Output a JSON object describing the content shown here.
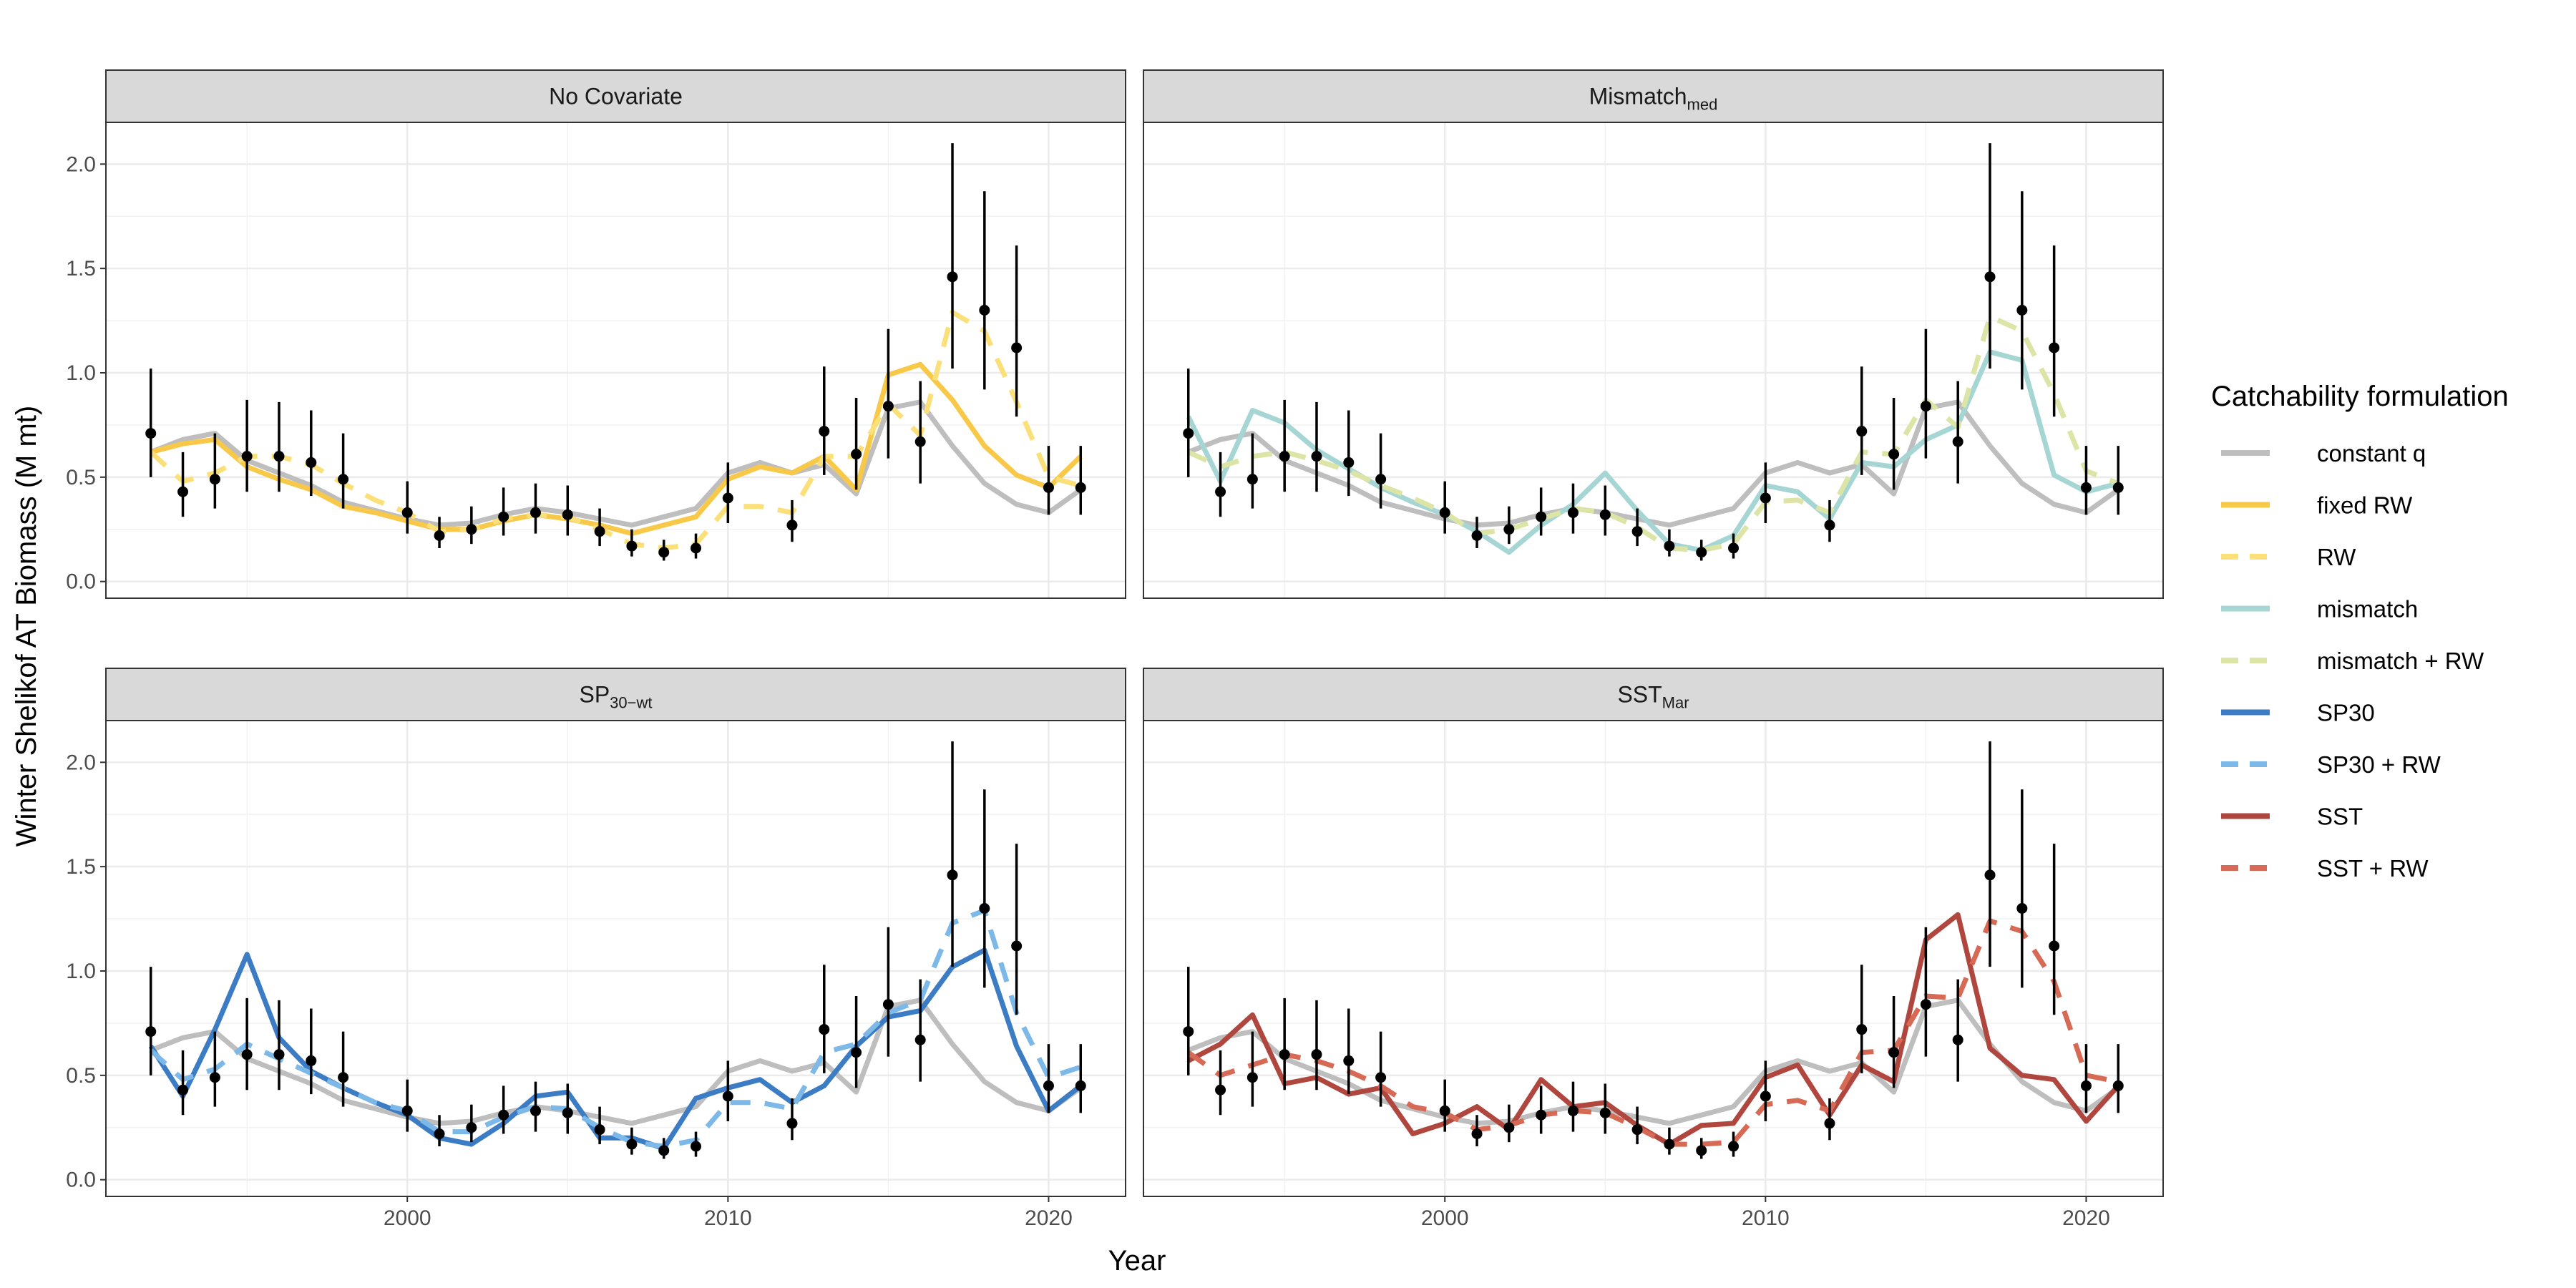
{
  "chart_data": {
    "type": "line",
    "xlabel": "Year",
    "ylabel": "Winter Shelikof AT Biomass (M mt)",
    "xlim": [
      1990.6,
      2022.4
    ],
    "ylim": [
      -0.08,
      2.2
    ],
    "x_ticks": [
      2000,
      2010,
      2020
    ],
    "y_ticks": [
      0.0,
      0.5,
      1.0,
      1.5,
      2.0
    ],
    "y_tick_labels": [
      "0.0",
      "0.5",
      "1.0",
      "1.5",
      "2.0"
    ],
    "grid": true,
    "legend": {
      "title": "Catchability formulation",
      "position": "right",
      "entries": [
        {
          "key": "constant_q",
          "label": "constant q",
          "color": "#BEBEBE",
          "dash": false
        },
        {
          "key": "fixed_RW",
          "label": "fixed RW",
          "color": "#F8C948",
          "dash": false
        },
        {
          "key": "RW",
          "label": "RW",
          "color": "#FBE07A",
          "dash": true
        },
        {
          "key": "mismatch",
          "label": "mismatch",
          "color": "#A6D6D4",
          "dash": false
        },
        {
          "key": "mismatch_RW",
          "label": "mismatch + RW",
          "color": "#DCE4A6",
          "dash": true
        },
        {
          "key": "SP30",
          "label": "SP30",
          "color": "#3B7CC4",
          "dash": false
        },
        {
          "key": "SP30_RW",
          "label": "SP30 + RW",
          "color": "#7DB9E8",
          "dash": true
        },
        {
          "key": "SST",
          "label": "SST",
          "color": "#B0473F",
          "dash": false
        },
        {
          "key": "SST_RW",
          "label": "SST + RW",
          "color": "#D66A55",
          "dash": true
        }
      ]
    },
    "observations": {
      "years": [
        1992,
        1993,
        1994,
        1995,
        1996,
        1997,
        1998,
        2000,
        2001,
        2002,
        2003,
        2004,
        2005,
        2006,
        2007,
        2008,
        2009,
        2010,
        2012,
        2013,
        2014,
        2015,
        2016,
        2017,
        2018,
        2019,
        2020,
        2021
      ],
      "values": [
        0.71,
        0.43,
        0.49,
        0.6,
        0.6,
        0.57,
        0.49,
        0.33,
        0.22,
        0.25,
        0.31,
        0.33,
        0.32,
        0.24,
        0.17,
        0.14,
        0.16,
        0.4,
        0.27,
        0.72,
        0.61,
        0.84,
        0.67,
        1.46,
        1.3,
        1.12,
        0.45,
        0.45
      ],
      "lower": [
        0.5,
        0.31,
        0.35,
        0.43,
        0.43,
        0.41,
        0.35,
        0.23,
        0.16,
        0.18,
        0.22,
        0.23,
        0.22,
        0.17,
        0.12,
        0.1,
        0.11,
        0.28,
        0.19,
        0.51,
        0.44,
        0.59,
        0.47,
        1.02,
        0.92,
        0.79,
        0.32,
        0.32
      ],
      "upper": [
        1.02,
        0.62,
        0.71,
        0.87,
        0.86,
        0.82,
        0.71,
        0.48,
        0.31,
        0.36,
        0.45,
        0.47,
        0.46,
        0.35,
        0.25,
        0.2,
        0.23,
        0.57,
        0.39,
        1.03,
        0.88,
        1.21,
        0.96,
        2.1,
        1.87,
        1.61,
        0.65,
        0.65
      ]
    },
    "panels": [
      {
        "title": "No  Covariate",
        "title_sub": "",
        "series": [
          {
            "key": "constant_q",
            "x": [
              1992,
              1993,
              1994,
              1995,
              1996,
              1997,
              1998,
              1999,
              2000,
              2001,
              2002,
              2003,
              2004,
              2005,
              2006,
              2007,
              2008,
              2009,
              2010,
              2011,
              2012,
              2013,
              2014,
              2015,
              2016,
              2017,
              2018,
              2019,
              2020,
              2021
            ],
            "values": [
              0.62,
              0.68,
              0.71,
              0.58,
              0.52,
              0.46,
              0.38,
              0.34,
              0.3,
              0.27,
              0.28,
              0.32,
              0.35,
              0.33,
              0.3,
              0.27,
              0.31,
              0.35,
              0.52,
              0.57,
              0.52,
              0.56,
              0.42,
              0.83,
              0.86,
              0.65,
              0.47,
              0.37,
              0.33,
              0.44
            ]
          },
          {
            "key": "fixed_RW",
            "x": [
              1992,
              1993,
              1994,
              1995,
              1996,
              1997,
              1998,
              1999,
              2000,
              2001,
              2002,
              2003,
              2004,
              2005,
              2006,
              2007,
              2008,
              2009,
              2010,
              2011,
              2012,
              2013,
              2014,
              2015,
              2016,
              2017,
              2018,
              2019,
              2020,
              2021
            ],
            "values": [
              0.62,
              0.66,
              0.68,
              0.55,
              0.49,
              0.44,
              0.36,
              0.33,
              0.29,
              0.25,
              0.25,
              0.29,
              0.32,
              0.3,
              0.27,
              0.23,
              0.27,
              0.31,
              0.49,
              0.55,
              0.52,
              0.6,
              0.44,
              0.99,
              1.04,
              0.87,
              0.65,
              0.51,
              0.45,
              0.6
            ]
          },
          {
            "key": "RW",
            "x": [
              1992,
              1993,
              1994,
              1995,
              1996,
              1997,
              1998,
              1999,
              2000,
              2001,
              2002,
              2003,
              2004,
              2005,
              2006,
              2007,
              2008,
              2009,
              2010,
              2011,
              2012,
              2013,
              2014,
              2015,
              2016,
              2017,
              2018,
              2019,
              2020,
              2021
            ],
            "values": [
              0.62,
              0.48,
              0.52,
              0.6,
              0.6,
              0.56,
              0.47,
              0.39,
              0.33,
              0.24,
              0.25,
              0.3,
              0.32,
              0.31,
              0.25,
              0.18,
              0.16,
              0.18,
              0.36,
              0.36,
              0.33,
              0.6,
              0.6,
              0.85,
              0.7,
              1.29,
              1.2,
              0.86,
              0.5,
              0.46
            ]
          }
        ]
      },
      {
        "title": "Mismatch",
        "title_sub": "med",
        "series": [
          {
            "key": "constant_q",
            "x": [
              1992,
              1993,
              1994,
              1995,
              1996,
              1997,
              1998,
              1999,
              2000,
              2001,
              2002,
              2003,
              2004,
              2005,
              2006,
              2007,
              2008,
              2009,
              2010,
              2011,
              2012,
              2013,
              2014,
              2015,
              2016,
              2017,
              2018,
              2019,
              2020,
              2021
            ],
            "values": [
              0.62,
              0.68,
              0.71,
              0.58,
              0.52,
              0.46,
              0.38,
              0.34,
              0.3,
              0.27,
              0.28,
              0.32,
              0.35,
              0.33,
              0.3,
              0.27,
              0.31,
              0.35,
              0.52,
              0.57,
              0.52,
              0.56,
              0.42,
              0.83,
              0.86,
              0.65,
              0.47,
              0.37,
              0.33,
              0.44
            ]
          },
          {
            "key": "mismatch",
            "x": [
              1992,
              1993,
              1994,
              1995,
              1996,
              1997,
              1998,
              1999,
              2000,
              2001,
              2002,
              2003,
              2004,
              2005,
              2006,
              2007,
              2008,
              2009,
              2010,
              2011,
              2012,
              2013,
              2014,
              2015,
              2016,
              2017,
              2018,
              2019,
              2020,
              2021
            ],
            "values": [
              0.79,
              0.48,
              0.82,
              0.76,
              0.63,
              0.54,
              0.45,
              0.38,
              0.32,
              0.24,
              0.14,
              0.27,
              0.37,
              0.52,
              0.34,
              0.18,
              0.15,
              0.22,
              0.46,
              0.43,
              0.3,
              0.57,
              0.55,
              0.68,
              0.75,
              1.1,
              1.06,
              0.51,
              0.43,
              0.47
            ]
          },
          {
            "key": "mismatch_RW",
            "x": [
              1992,
              1993,
              1994,
              1995,
              1996,
              1997,
              1998,
              1999,
              2000,
              2001,
              2002,
              2003,
              2004,
              2005,
              2006,
              2007,
              2008,
              2009,
              2010,
              2011,
              2012,
              2013,
              2014,
              2015,
              2016,
              2017,
              2018,
              2019,
              2020,
              2021
            ],
            "values": [
              0.62,
              0.55,
              0.6,
              0.62,
              0.58,
              0.53,
              0.46,
              0.4,
              0.33,
              0.23,
              0.25,
              0.3,
              0.35,
              0.33,
              0.26,
              0.16,
              0.15,
              0.18,
              0.38,
              0.39,
              0.33,
              0.62,
              0.61,
              0.87,
              0.74,
              1.27,
              1.2,
              0.9,
              0.53,
              0.47
            ]
          }
        ]
      },
      {
        "title": "SP",
        "title_sub": "30−wt",
        "series": [
          {
            "key": "constant_q",
            "x": [
              1992,
              1993,
              1994,
              1995,
              1996,
              1997,
              1998,
              1999,
              2000,
              2001,
              2002,
              2003,
              2004,
              2005,
              2006,
              2007,
              2008,
              2009,
              2010,
              2011,
              2012,
              2013,
              2014,
              2015,
              2016,
              2017,
              2018,
              2019,
              2020,
              2021
            ],
            "values": [
              0.62,
              0.68,
              0.71,
              0.58,
              0.52,
              0.46,
              0.38,
              0.34,
              0.3,
              0.27,
              0.28,
              0.32,
              0.35,
              0.33,
              0.3,
              0.27,
              0.31,
              0.35,
              0.52,
              0.57,
              0.52,
              0.56,
              0.42,
              0.83,
              0.86,
              0.65,
              0.47,
              0.37,
              0.33,
              0.44
            ]
          },
          {
            "key": "SP30",
            "x": [
              1992,
              1993,
              1994,
              1995,
              1996,
              1997,
              1998,
              1999,
              2000,
              2001,
              2002,
              2003,
              2004,
              2005,
              2006,
              2007,
              2008,
              2009,
              2010,
              2011,
              2012,
              2013,
              2014,
              2015,
              2016,
              2017,
              2018,
              2019,
              2020,
              2021
            ],
            "values": [
              0.64,
              0.4,
              0.72,
              1.08,
              0.68,
              0.52,
              0.44,
              0.37,
              0.31,
              0.2,
              0.17,
              0.27,
              0.4,
              0.42,
              0.2,
              0.2,
              0.15,
              0.39,
              0.44,
              0.48,
              0.37,
              0.45,
              0.64,
              0.78,
              0.81,
              1.02,
              1.1,
              0.64,
              0.33,
              0.45
            ]
          },
          {
            "key": "SP30_RW",
            "x": [
              1992,
              1993,
              1994,
              1995,
              1996,
              1997,
              1998,
              1999,
              2000,
              2001,
              2002,
              2003,
              2004,
              2005,
              2006,
              2007,
              2008,
              2009,
              2010,
              2011,
              2012,
              2013,
              2014,
              2015,
              2016,
              2017,
              2018,
              2019,
              2020,
              2021
            ],
            "values": [
              0.62,
              0.48,
              0.53,
              0.65,
              0.58,
              0.51,
              0.44,
              0.37,
              0.33,
              0.23,
              0.23,
              0.3,
              0.35,
              0.34,
              0.25,
              0.18,
              0.16,
              0.19,
              0.37,
              0.37,
              0.34,
              0.61,
              0.65,
              0.8,
              0.86,
              1.23,
              1.29,
              0.8,
              0.49,
              0.54
            ]
          }
        ]
      },
      {
        "title": "SST",
        "title_sub": "Mar",
        "series": [
          {
            "key": "constant_q",
            "x": [
              1992,
              1993,
              1994,
              1995,
              1996,
              1997,
              1998,
              1999,
              2000,
              2001,
              2002,
              2003,
              2004,
              2005,
              2006,
              2007,
              2008,
              2009,
              2010,
              2011,
              2012,
              2013,
              2014,
              2015,
              2016,
              2017,
              2018,
              2019,
              2020,
              2021
            ],
            "values": [
              0.62,
              0.68,
              0.71,
              0.58,
              0.52,
              0.46,
              0.38,
              0.34,
              0.3,
              0.27,
              0.28,
              0.32,
              0.35,
              0.33,
              0.3,
              0.27,
              0.31,
              0.35,
              0.52,
              0.57,
              0.52,
              0.56,
              0.42,
              0.83,
              0.86,
              0.65,
              0.47,
              0.37,
              0.33,
              0.44
            ]
          },
          {
            "key": "SST",
            "x": [
              1992,
              1993,
              1994,
              1995,
              1996,
              1997,
              1998,
              1999,
              2000,
              2001,
              2002,
              2003,
              2004,
              2005,
              2006,
              2007,
              2008,
              2009,
              2010,
              2011,
              2012,
              2013,
              2014,
              2015,
              2016,
              2017,
              2018,
              2019,
              2020,
              2021
            ],
            "values": [
              0.57,
              0.65,
              0.79,
              0.46,
              0.49,
              0.41,
              0.44,
              0.22,
              0.27,
              0.35,
              0.24,
              0.48,
              0.35,
              0.37,
              0.26,
              0.17,
              0.26,
              0.27,
              0.49,
              0.55,
              0.31,
              0.55,
              0.47,
              1.15,
              1.27,
              0.63,
              0.5,
              0.48,
              0.28,
              0.45
            ]
          },
          {
            "key": "SST_RW",
            "x": [
              1992,
              1993,
              1994,
              1995,
              1996,
              1997,
              1998,
              1999,
              2000,
              2001,
              2002,
              2003,
              2004,
              2005,
              2006,
              2007,
              2008,
              2009,
              2010,
              2011,
              2012,
              2013,
              2014,
              2015,
              2016,
              2017,
              2018,
              2019,
              2020,
              2021
            ],
            "values": [
              0.61,
              0.5,
              0.55,
              0.6,
              0.57,
              0.52,
              0.45,
              0.35,
              0.32,
              0.24,
              0.26,
              0.31,
              0.33,
              0.32,
              0.25,
              0.17,
              0.17,
              0.18,
              0.36,
              0.38,
              0.33,
              0.61,
              0.62,
              0.88,
              0.87,
              1.24,
              1.19,
              0.95,
              0.5,
              0.47
            ]
          }
        ]
      }
    ]
  }
}
